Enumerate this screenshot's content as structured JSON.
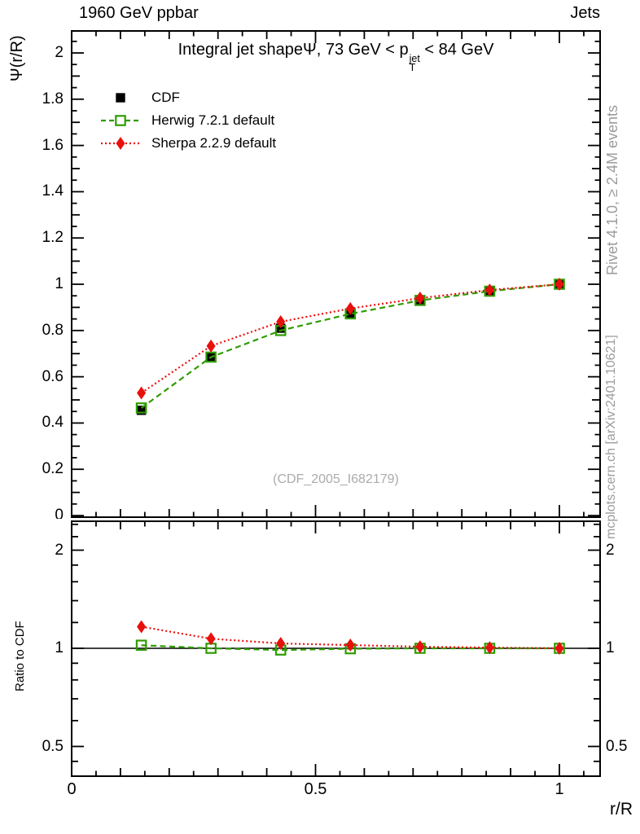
{
  "header": {
    "left": "1960 GeV ppbar",
    "right": "Jets"
  },
  "title": {
    "before_psi": "Integral jet shape",
    "psi": "Ψ",
    "mid": ", 73 GeV < p",
    "sup": "jet",
    "sub": "T",
    "after": " < 84 GeV"
  },
  "legend": [
    {
      "label": "CDF",
      "marker": "filled-square",
      "line": "none",
      "color": "#000000"
    },
    {
      "label": "Herwig 7.2.1 default",
      "marker": "open-square",
      "line": "dashed",
      "color": "#2f9c00"
    },
    {
      "label": "Sherpa 2.2.9 default",
      "marker": "filled-diamond",
      "line": "dotted",
      "color": "#e8100c"
    }
  ],
  "notes": {
    "rivet": "Rivet 4.1.0, ≥ 2.4M events",
    "mcplots": "mcplots.cern.ch [arXiv:2401.10621]"
  },
  "watermark": "(CDF_2005_I682179)",
  "axes": {
    "main_y_label": "Ψ(r/R)",
    "ratio_y_label": "Ratio to CDF",
    "x_label": "r/R",
    "x_tick_labels": [
      0,
      0.5,
      1
    ],
    "main_y_tick_labels": [
      0,
      0.2,
      0.4,
      0.6,
      0.8,
      1,
      1.2,
      1.4,
      1.6,
      1.8,
      2
    ],
    "ratio_y_tick_labels": [
      0.5,
      1,
      2
    ]
  },
  "colors": {
    "cdf": "#000000",
    "herwig": "#2f9c00",
    "sherpa": "#e8100c",
    "note_gray": "#9c9c9c",
    "watermark_gray": "#ababab"
  },
  "chart_data": [
    {
      "type": "line",
      "panel": "main",
      "title": "Integral jet shape Ψ, 73 GeV < p_T^jet < 84 GeV",
      "xlabel": "r/R",
      "ylabel": "Ψ(r/R)",
      "xlim": [
        0,
        1.08
      ],
      "ylim": [
        0,
        2.1
      ],
      "grid": false,
      "legend_position": "top-left",
      "x": [
        0.1429,
        0.2857,
        0.4286,
        0.5714,
        0.7143,
        0.8571,
        1.0
      ],
      "series": [
        {
          "name": "CDF",
          "marker": "filled-square",
          "line": "none",
          "color": "#000000",
          "values": [
            0.455,
            0.685,
            0.81,
            0.875,
            0.93,
            0.97,
            1.0
          ],
          "yerr": [
            0.018,
            0.012,
            0.01,
            0.008,
            0.006,
            0.005,
            0.004
          ]
        },
        {
          "name": "Herwig 7.2.1 default",
          "marker": "open-square",
          "line": "dashed",
          "color": "#2f9c00",
          "values": [
            0.465,
            0.685,
            0.8,
            0.872,
            0.93,
            0.97,
            1.0
          ]
        },
        {
          "name": "Sherpa 2.2.9 default",
          "marker": "filled-diamond",
          "line": "dotted",
          "color": "#e8100c",
          "values": [
            0.53,
            0.733,
            0.838,
            0.895,
            0.94,
            0.975,
            1.0
          ]
        }
      ]
    },
    {
      "type": "line",
      "panel": "ratio",
      "ylabel": "Ratio to CDF",
      "yscale": "log",
      "xlim": [
        0,
        1.08
      ],
      "ylim": [
        0.4,
        2.45
      ],
      "reference_line": 1.0,
      "x": [
        0.1429,
        0.2857,
        0.4286,
        0.5714,
        0.7143,
        0.8571,
        1.0
      ],
      "series": [
        {
          "name": "Herwig 7.2.1 default / CDF",
          "marker": "open-square",
          "line": "dashed",
          "color": "#2f9c00",
          "values": [
            1.022,
            1.0,
            0.988,
            0.997,
            1.0,
            1.0,
            1.0
          ]
        },
        {
          "name": "Sherpa 2.2.9 default / CDF",
          "marker": "filled-diamond",
          "line": "dotted",
          "color": "#e8100c",
          "values": [
            1.165,
            1.07,
            1.035,
            1.023,
            1.011,
            1.005,
            1.0
          ],
          "yerr": [
            0.02,
            0.012,
            0.01,
            0.01,
            0.012,
            0.015,
            0.02
          ]
        }
      ]
    }
  ]
}
